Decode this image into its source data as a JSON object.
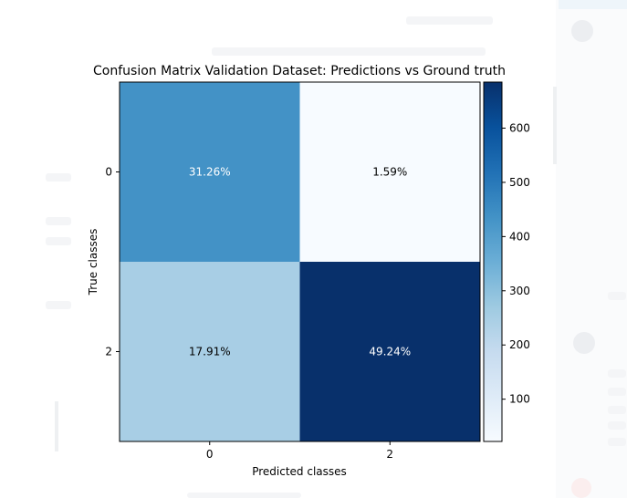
{
  "chart_data": {
    "type": "heatmap",
    "title": "Confusion Matrix Validation Dataset: Predictions vs Ground truth",
    "xlabel": "Predicted classes",
    "ylabel": "True classes",
    "x_categories": [
      "0",
      "2"
    ],
    "y_categories": [
      "0",
      "2"
    ],
    "cells": [
      {
        "row": 0,
        "col": 0,
        "label": "31.26%",
        "value": 435
      },
      {
        "row": 0,
        "col": 1,
        "label": "1.59%",
        "value": 22
      },
      {
        "row": 1,
        "col": 0,
        "label": "17.91%",
        "value": 249
      },
      {
        "row": 1,
        "col": 1,
        "label": "49.24%",
        "value": 685
      }
    ],
    "colormap": "Blues",
    "colorbar": {
      "min": 22,
      "max": 685,
      "ticks": [
        "100",
        "200",
        "300",
        "400",
        "500",
        "600"
      ],
      "tick_values": [
        100,
        200,
        300,
        400,
        500,
        600
      ]
    },
    "grid": false,
    "legend": "colorbar-right"
  }
}
